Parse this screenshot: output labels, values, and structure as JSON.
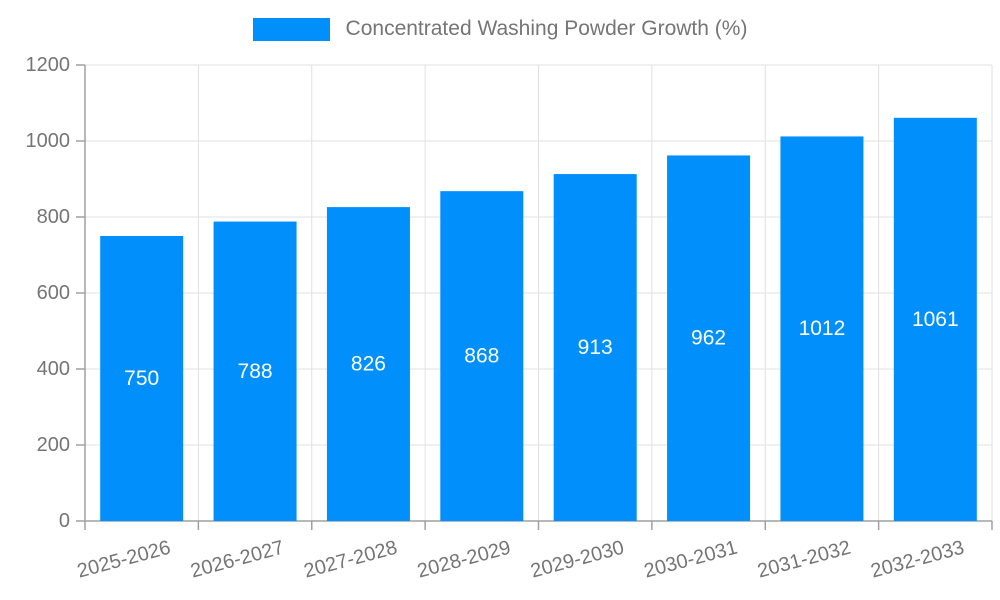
{
  "legend": {
    "label": "Concentrated Washing Powder Growth (%)"
  },
  "chart_data": {
    "type": "bar",
    "title": "",
    "categories": [
      "2025-2026",
      "2026-2027",
      "2027-2028",
      "2028-2029",
      "2029-2030",
      "2030-2031",
      "2031-2032",
      "2032-2033"
    ],
    "values": [
      750,
      788,
      826,
      868,
      913,
      962,
      1012,
      1061
    ],
    "series": [
      {
        "name": "Concentrated Washing Powder Growth (%)",
        "values": [
          750,
          788,
          826,
          868,
          913,
          962,
          1012,
          1061
        ]
      }
    ],
    "xlabel": "",
    "ylabel": "",
    "ylim": [
      0,
      1200
    ],
    "yticks": [
      0,
      200,
      400,
      600,
      800,
      1000,
      1200
    ],
    "grid": "both",
    "legend_position": "top",
    "bar_value_labels": "inside-center",
    "x_label_rotation_deg": -15,
    "colors": {
      "bar": "#008FFB",
      "grid": "#e0e0e0",
      "axis": "#a0a0a0",
      "tick_label": "#757575",
      "value_label": "#ffffff"
    }
  }
}
